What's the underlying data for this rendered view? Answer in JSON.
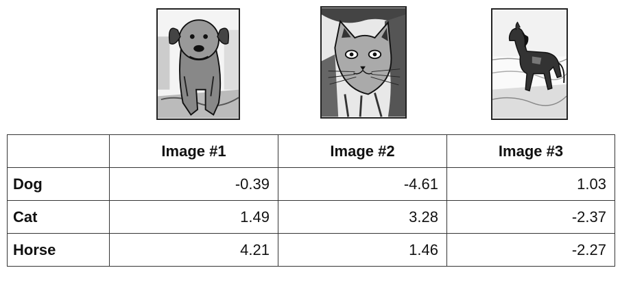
{
  "images": [
    {
      "icon": "dog-photo"
    },
    {
      "icon": "cat-photo"
    },
    {
      "icon": "horse-photo"
    }
  ],
  "table": {
    "corner": "",
    "columns": [
      "Image #1",
      "Image #2",
      "Image #3"
    ],
    "rows": [
      {
        "label": "Dog",
        "values": [
          "-0.39",
          "-4.61",
          "1.03"
        ]
      },
      {
        "label": "Cat",
        "values": [
          "1.49",
          "3.28",
          "-2.37"
        ]
      },
      {
        "label": "Horse",
        "values": [
          "4.21",
          "1.46",
          "-2.27"
        ]
      }
    ]
  }
}
